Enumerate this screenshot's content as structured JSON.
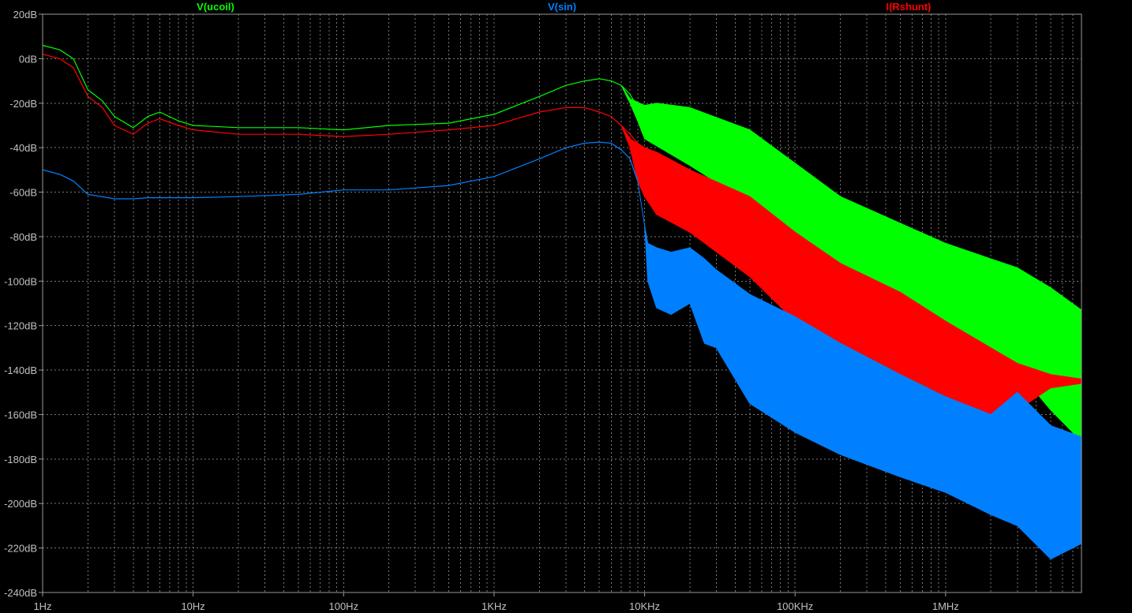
{
  "chart_data": {
    "type": "line",
    "xscale": "log",
    "xlim": [
      1,
      8000000
    ],
    "ylim": [
      -240,
      20
    ],
    "grid": true,
    "legend_position": "top",
    "x_tick_values": [
      1,
      10,
      100,
      1000,
      10000,
      100000,
      1000000
    ],
    "x_tick_labels": [
      "1Hz",
      "10Hz",
      "100Hz",
      "1KHz",
      "10KHz",
      "100KHz",
      "1MHz"
    ],
    "y_tick_values": [
      20,
      0,
      -20,
      -40,
      -60,
      -80,
      -100,
      -120,
      -140,
      -160,
      -180,
      -200,
      -220,
      -240
    ],
    "y_tick_labels": [
      "20dB",
      "0dB",
      "-20dB",
      "-40dB",
      "-60dB",
      "-80dB",
      "-100dB",
      "-120dB",
      "-140dB",
      "-160dB",
      "-180dB",
      "-200dB",
      "-220dB",
      "-240dB"
    ],
    "series": [
      {
        "name": "V(ucoil)",
        "color": "#00ff00",
        "x": [
          1,
          1.3,
          1.6,
          2,
          2.5,
          3,
          4,
          5,
          6,
          8,
          10,
          20,
          50,
          100,
          200,
          500,
          1000,
          2000,
          3000,
          4000,
          5000,
          6000,
          7000,
          8000,
          9000,
          10000
        ],
        "y": [
          6,
          4,
          0,
          -14,
          -19,
          -26,
          -31,
          -26,
          -24,
          -28,
          -30,
          -31,
          -31,
          -32,
          -30,
          -29,
          -25,
          -17,
          -12,
          -10,
          -9,
          -10,
          -12,
          -16,
          -22,
          -25
        ],
        "upper_x": [
          7000,
          8000,
          10000,
          12000,
          20000,
          50000,
          100000,
          200000,
          500000,
          1000000,
          2000000,
          3000000,
          5000000,
          8000000
        ],
        "upper_y": [
          -12,
          -18,
          -21,
          -20,
          -22,
          -32,
          -47,
          -62,
          -74,
          -83,
          -90,
          -94,
          -103,
          -113
        ],
        "lower_x": [
          7000,
          8000,
          9000,
          10000,
          20000,
          50000,
          100000,
          200000,
          500000,
          1000000,
          2000000,
          3000000,
          5000000,
          8000000
        ],
        "lower_y": [
          -12,
          -20,
          -28,
          -36,
          -48,
          -65,
          -84,
          -95,
          -110,
          -122,
          -133,
          -140,
          -158,
          -172
        ]
      },
      {
        "name": "V(sin)",
        "color": "#0080ff",
        "x": [
          1,
          1.3,
          1.6,
          2,
          3,
          4,
          5,
          10,
          20,
          50,
          100,
          200,
          500,
          1000,
          2000,
          3000,
          4000,
          5000,
          6000,
          7000,
          8000,
          9000
        ],
        "y": [
          -50,
          -52,
          -55,
          -61,
          -63,
          -63,
          -62.5,
          -62.5,
          -62,
          -61,
          -59,
          -59,
          -57,
          -53,
          -45,
          -40,
          -38,
          -37.5,
          -38,
          -41,
          -45,
          -55
        ],
        "upper_x": [
          8000,
          9000,
          10000,
          10500,
          12000,
          15000,
          20000,
          25000,
          30000,
          50000,
          100000,
          200000,
          500000,
          1000000,
          2000000,
          3000000,
          5000000,
          8000000
        ],
        "upper_y": [
          -45,
          -55,
          -75,
          -83,
          -85,
          -87,
          -85,
          -90,
          -95,
          -106,
          -116,
          -128,
          -142,
          -152,
          -160,
          -150,
          -165,
          -170
        ],
        "lower_x": [
          8000,
          9000,
          10000,
          10500,
          12000,
          15000,
          20000,
          25000,
          30000,
          50000,
          100000,
          200000,
          500000,
          1000000,
          2000000,
          3000000,
          5000000,
          8000000
        ],
        "lower_y": [
          -45,
          -55,
          -75,
          -100,
          -112,
          -115,
          -110,
          -128,
          -130,
          -155,
          -168,
          -178,
          -188,
          -195,
          -205,
          -210,
          -225,
          -218
        ]
      },
      {
        "name": "I(Rshunt)",
        "color": "#ff0000",
        "x": [
          1,
          1.3,
          1.6,
          2,
          2.5,
          3,
          4,
          5,
          6,
          8,
          10,
          20,
          50,
          100,
          200,
          500,
          1000,
          2000,
          3000,
          4000,
          5000,
          6000,
          7000,
          8000,
          9000,
          10000
        ],
        "y": [
          2,
          0,
          -4,
          -17,
          -22,
          -30,
          -34,
          -29,
          -27,
          -30,
          -32,
          -34,
          -34,
          -35,
          -34,
          -32,
          -30,
          -24,
          -22,
          -22,
          -24,
          -26,
          -30,
          -34,
          -38,
          -40
        ],
        "upper_x": [
          7000,
          8000,
          10000,
          12000,
          20000,
          50000,
          100000,
          200000,
          500000,
          1000000,
          2000000,
          3000000,
          5000000,
          8000000
        ],
        "upper_y": [
          -30,
          -36,
          -40,
          -42,
          -50,
          -62,
          -78,
          -92,
          -105,
          -118,
          -130,
          -137,
          -142,
          -144
        ],
        "lower_x": [
          7000,
          8000,
          9000,
          10000,
          12000,
          20000,
          50000,
          100000,
          200000,
          500000,
          1000000,
          2000000,
          3000000,
          5000000,
          8000000
        ],
        "lower_y": [
          -30,
          -40,
          -55,
          -62,
          -70,
          -78,
          -98,
          -118,
          -135,
          -152,
          -165,
          -175,
          -158,
          -148,
          -146
        ]
      }
    ]
  }
}
